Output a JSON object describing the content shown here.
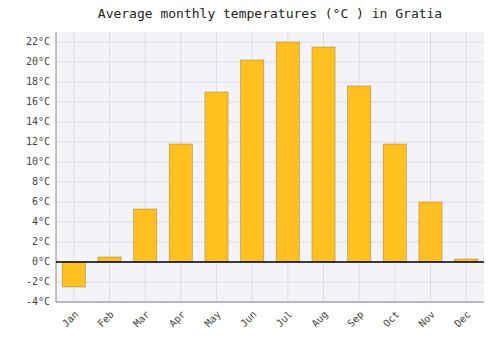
{
  "chart_data": {
    "type": "bar",
    "title": "Average monthly temperatures (°C ) in Gratia",
    "categories": [
      "Jan",
      "Feb",
      "Mar",
      "Apr",
      "May",
      "Jun",
      "Jul",
      "Aug",
      "Sep",
      "Oct",
      "Nov",
      "Dec"
    ],
    "values": [
      -2.5,
      0.5,
      5.3,
      11.8,
      17.0,
      20.2,
      22.0,
      21.5,
      17.6,
      11.8,
      6.0,
      0.3
    ],
    "color": "#FFC020",
    "ylim": [
      -4,
      23
    ],
    "yticks": [
      {
        "value": -4,
        "label": "-4°C"
      },
      {
        "value": -2,
        "label": "-2°C"
      },
      {
        "value": 0,
        "label": "0°C"
      },
      {
        "value": 2,
        "label": "2°C"
      },
      {
        "value": 4,
        "label": "4°C"
      },
      {
        "value": 6,
        "label": "6°C"
      },
      {
        "value": 8,
        "label": "8°C"
      },
      {
        "value": 10,
        "label": "10°C"
      },
      {
        "value": 12,
        "label": "12°C"
      },
      {
        "value": 14,
        "label": "14°C"
      },
      {
        "value": 16,
        "label": "16°C"
      },
      {
        "value": 18,
        "label": "18°C"
      },
      {
        "value": 20,
        "label": "20°C"
      },
      {
        "value": 22,
        "label": "22°C"
      }
    ],
    "grid": true
  }
}
